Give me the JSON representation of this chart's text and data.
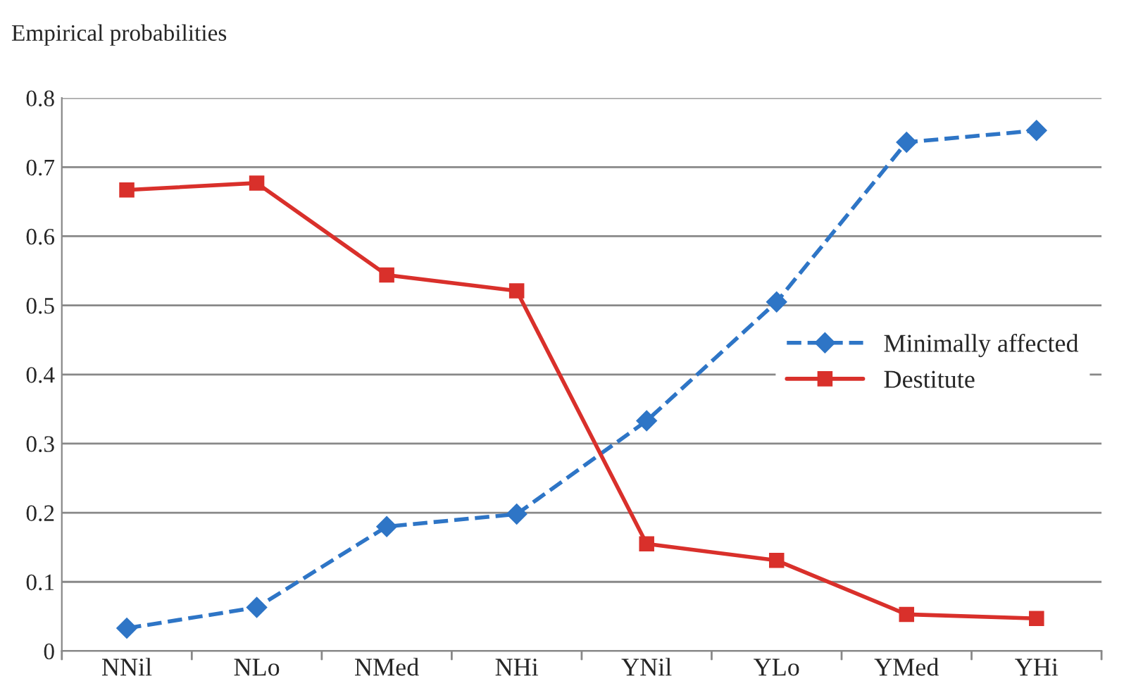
{
  "chart_data": {
    "type": "line",
    "ylabel": "Empirical probabilities",
    "categories": [
      "NNil",
      "NLo",
      "NMed",
      "NHi",
      "YNil",
      "YLo",
      "YMed",
      "YHi"
    ],
    "series": [
      {
        "name": "Minimally affected",
        "color": "#2e75c6",
        "marker": "diamond",
        "line_style": "dashed",
        "values": [
          0.033,
          0.063,
          0.18,
          0.198,
          0.333,
          0.505,
          0.736,
          0.753
        ]
      },
      {
        "name": "Destitute",
        "color": "#d9302b",
        "marker": "square",
        "line_style": "solid",
        "values": [
          0.667,
          0.677,
          0.544,
          0.521,
          0.155,
          0.131,
          0.053,
          0.047
        ]
      }
    ],
    "ylim": [
      0,
      0.8
    ],
    "yticks": [
      0,
      0.1,
      0.2,
      0.3,
      0.4,
      0.5,
      0.6,
      0.7,
      0.8
    ],
    "grid": "y",
    "legend": "right"
  }
}
